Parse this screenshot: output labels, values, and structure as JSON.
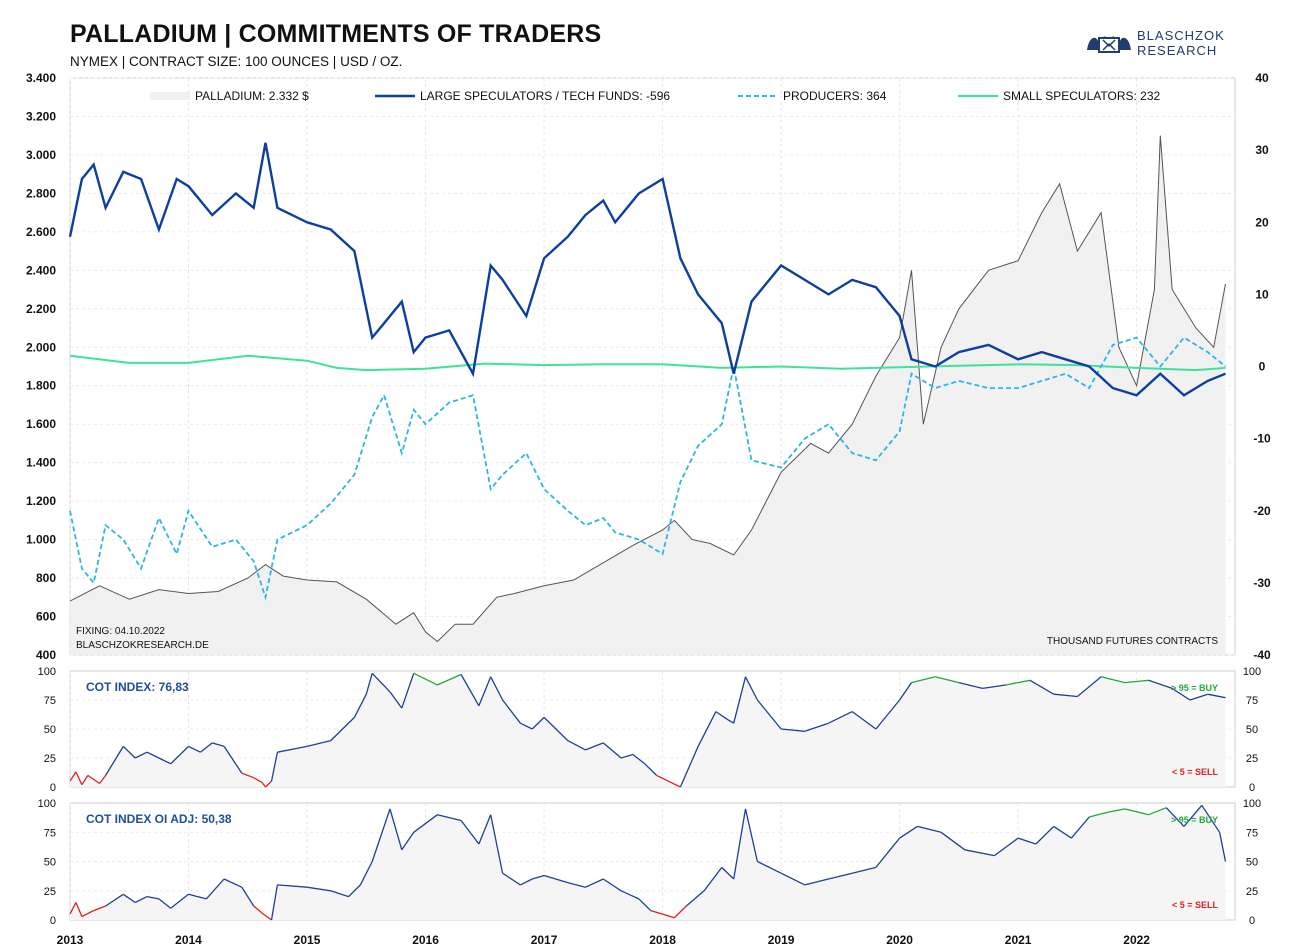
{
  "header": {
    "title": "PALLADIUM | COMMITMENTS OF TRADERS",
    "subtitle": "NYMEX | CONTRACT SIZE: 100 OUNCES | USD / OZ.",
    "logo_line1": "BLASCHZOK",
    "logo_line2": "RESEARCH"
  },
  "colors": {
    "price": "#555555",
    "large_speculators": "#0d3fa0",
    "producers": "#29b6e8",
    "small_speculators": "#3ee39a",
    "buy": "#1eaa3a",
    "sell": "#e02020",
    "index_line": "#1f3f9a"
  },
  "chart_data": [
    {
      "type": "line",
      "x_ticks": [
        "2013",
        "2014",
        "2015",
        "2016",
        "2017",
        "2018",
        "2019",
        "2020",
        "2021",
        "2022"
      ],
      "y_left_ticks": [
        "3.400",
        "3.200",
        "3.000",
        "2.800",
        "2.600",
        "2.400",
        "2.200",
        "2.000",
        "1.800",
        "1.600",
        "1.400",
        "1.200",
        "1.000",
        "800",
        "600",
        "400"
      ],
      "y_right_ticks": [
        "40",
        "30",
        "20",
        "10",
        "0",
        "-10",
        "-20",
        "-30",
        "-40"
      ],
      "ylim_left": [
        400,
        3400
      ],
      "ylim_right": [
        -40,
        40
      ],
      "legend": [
        {
          "key": "price",
          "label": "PALLADIUM: 2.332 $"
        },
        {
          "key": "large",
          "label": "LARGE SPECULATORS / TECH FUNDS: -596"
        },
        {
          "key": "producers",
          "label": "PRODUCERS: 364"
        },
        {
          "key": "small",
          "label": "SMALL SPECULATORS: 232"
        }
      ],
      "annotation_fixing": "FIXING: 04.10.2022",
      "annotation_site": "BLASCHZOKRESEARCH.DE",
      "annotation_units": "THOUSAND  FUTURES  CONTRACTS",
      "series": [
        {
          "name": "PALLADIUM",
          "axis": "left",
          "x": [
            2013.0,
            2013.25,
            2013.5,
            2013.75,
            2014.0,
            2014.25,
            2014.5,
            2014.65,
            2014.8,
            2015.0,
            2015.25,
            2015.5,
            2015.75,
            2015.9,
            2016.0,
            2016.1,
            2016.25,
            2016.4,
            2016.6,
            2016.75,
            2017.0,
            2017.25,
            2017.5,
            2017.75,
            2018.0,
            2018.1,
            2018.25,
            2018.4,
            2018.6,
            2018.75,
            2019.0,
            2019.25,
            2019.4,
            2019.6,
            2019.8,
            2020.0,
            2020.1,
            2020.2,
            2020.35,
            2020.5,
            2020.75,
            2021.0,
            2021.2,
            2021.35,
            2021.5,
            2021.7,
            2021.85,
            2022.0,
            2022.15,
            2022.2,
            2022.3,
            2022.5,
            2022.65,
            2022.75
          ],
          "y": [
            680,
            760,
            690,
            740,
            720,
            730,
            800,
            870,
            810,
            790,
            780,
            690,
            560,
            620,
            520,
            470,
            560,
            560,
            700,
            720,
            760,
            790,
            880,
            970,
            1050,
            1100,
            1000,
            980,
            920,
            1050,
            1350,
            1500,
            1450,
            1600,
            1850,
            2050,
            2400,
            1600,
            2000,
            2200,
            2400,
            2450,
            2700,
            2850,
            2500,
            2700,
            2000,
            1800,
            2300,
            3100,
            2300,
            2100,
            2000,
            2330
          ]
        },
        {
          "name": "LARGE SPECULATORS / TECH FUNDS",
          "axis": "right",
          "x": [
            2013.0,
            2013.1,
            2013.2,
            2013.3,
            2013.45,
            2013.6,
            2013.75,
            2013.9,
            2014.0,
            2014.2,
            2014.4,
            2014.55,
            2014.65,
            2014.75,
            2015.0,
            2015.2,
            2015.4,
            2015.55,
            2015.65,
            2015.8,
            2015.9,
            2016.0,
            2016.2,
            2016.4,
            2016.55,
            2016.65,
            2016.85,
            2017.0,
            2017.2,
            2017.35,
            2017.5,
            2017.6,
            2017.8,
            2018.0,
            2018.15,
            2018.3,
            2018.5,
            2018.6,
            2018.75,
            2019.0,
            2019.2,
            2019.4,
            2019.6,
            2019.8,
            2020.0,
            2020.1,
            2020.3,
            2020.5,
            2020.75,
            2021.0,
            2021.2,
            2021.4,
            2021.6,
            2021.8,
            2022.0,
            2022.2,
            2022.4,
            2022.6,
            2022.75
          ],
          "y": [
            18,
            26,
            28,
            22,
            27,
            26,
            19,
            26,
            25,
            21,
            24,
            22,
            31,
            22,
            20,
            19,
            16,
            4,
            6,
            9,
            2,
            4,
            5,
            -1,
            14,
            12,
            7,
            15,
            18,
            21,
            23,
            20,
            24,
            26,
            15,
            10,
            6,
            -1,
            9,
            14,
            12,
            10,
            12,
            11,
            7,
            1,
            0,
            2,
            3,
            1,
            2,
            1,
            0,
            -3,
            -4,
            -1,
            -4,
            -2,
            -1
          ]
        },
        {
          "name": "PRODUCERS",
          "axis": "right",
          "x": [
            2013.0,
            2013.1,
            2013.2,
            2013.3,
            2013.45,
            2013.6,
            2013.75,
            2013.9,
            2014.0,
            2014.2,
            2014.4,
            2014.55,
            2014.65,
            2014.75,
            2015.0,
            2015.2,
            2015.4,
            2015.55,
            2015.65,
            2015.8,
            2015.9,
            2016.0,
            2016.2,
            2016.4,
            2016.55,
            2016.65,
            2016.85,
            2017.0,
            2017.2,
            2017.35,
            2017.5,
            2017.6,
            2017.8,
            2018.0,
            2018.15,
            2018.3,
            2018.5,
            2018.6,
            2018.75,
            2019.0,
            2019.2,
            2019.4,
            2019.6,
            2019.8,
            2020.0,
            2020.1,
            2020.3,
            2020.5,
            2020.75,
            2021.0,
            2021.2,
            2021.4,
            2021.6,
            2021.8,
            2022.0,
            2022.2,
            2022.4,
            2022.6,
            2022.75
          ],
          "y": [
            -20,
            -28,
            -30,
            -22,
            -24,
            -28,
            -21,
            -26,
            -20,
            -25,
            -24,
            -27,
            -32,
            -24,
            -22,
            -19,
            -15,
            -7,
            -4,
            -12,
            -6,
            -8,
            -5,
            -4,
            -17,
            -15,
            -12,
            -17,
            -20,
            -22,
            -21,
            -23,
            -24,
            -26,
            -16,
            -11,
            -8,
            0,
            -13,
            -14,
            -10,
            -8,
            -12,
            -13,
            -9,
            -1,
            -3,
            -2,
            -3,
            -3,
            -2,
            -1,
            -3,
            3,
            4,
            0,
            4,
            2,
            0
          ]
        },
        {
          "name": "SMALL SPECULATORS",
          "axis": "right",
          "x": [
            2013.0,
            2013.5,
            2014.0,
            2014.5,
            2015.0,
            2015.25,
            2015.5,
            2016.0,
            2016.5,
            2017.0,
            2017.5,
            2018.0,
            2018.5,
            2019.0,
            2019.5,
            2020.0,
            2020.5,
            2021.0,
            2021.5,
            2022.0,
            2022.5,
            2022.75
          ],
          "y": [
            1.5,
            0.5,
            0.5,
            1.5,
            0.8,
            -0.2,
            -0.5,
            -0.3,
            0.4,
            0.2,
            0.3,
            0.3,
            -0.2,
            0,
            -0.3,
            -0.1,
            0.1,
            0.3,
            0.2,
            -0.2,
            -0.5,
            -0.2
          ]
        }
      ]
    },
    {
      "type": "line",
      "label": "COT INDEX: 76,83",
      "buy_label": "> 95 = BUY",
      "sell_label": "< 5 = SELL",
      "y_ticks": [
        "100",
        "75",
        "50",
        "25",
        "0"
      ],
      "ylim": [
        0,
        100
      ],
      "x": [
        2013.0,
        2013.05,
        2013.1,
        2013.15,
        2013.25,
        2013.3,
        2013.45,
        2013.55,
        2013.65,
        2013.75,
        2013.85,
        2014.0,
        2014.1,
        2014.2,
        2014.3,
        2014.45,
        2014.55,
        2014.62,
        2014.65,
        2014.7,
        2014.75,
        2015.0,
        2015.2,
        2015.4,
        2015.5,
        2015.55,
        2015.7,
        2015.8,
        2015.9,
        2016.1,
        2016.3,
        2016.45,
        2016.55,
        2016.65,
        2016.8,
        2016.9,
        2017.0,
        2017.2,
        2017.35,
        2017.5,
        2017.65,
        2017.75,
        2017.85,
        2017.95,
        2018.05,
        2018.15,
        2018.3,
        2018.45,
        2018.55,
        2018.6,
        2018.7,
        2018.8,
        2019.0,
        2019.2,
        2019.4,
        2019.6,
        2019.8,
        2020.0,
        2020.1,
        2020.3,
        2020.5,
        2020.7,
        2020.9,
        2021.1,
        2021.3,
        2021.5,
        2021.7,
        2021.9,
        2022.1,
        2022.3,
        2022.45,
        2022.6,
        2022.75
      ],
      "y": [
        5,
        13,
        2,
        10,
        3,
        10,
        35,
        25,
        30,
        25,
        20,
        35,
        30,
        38,
        35,
        12,
        8,
        4,
        0,
        5,
        30,
        35,
        40,
        60,
        80,
        98,
        82,
        68,
        98,
        88,
        97,
        70,
        95,
        75,
        55,
        50,
        60,
        40,
        32,
        38,
        25,
        28,
        20,
        10,
        5,
        0,
        35,
        65,
        58,
        55,
        95,
        75,
        50,
        48,
        55,
        65,
        50,
        75,
        90,
        95,
        90,
        85,
        88,
        92,
        80,
        78,
        95,
        90,
        92,
        85,
        75,
        80,
        77
      ]
    },
    {
      "type": "line",
      "label": "COT INDEX OI ADJ: 50,38",
      "buy_label": "> 95 = BUY",
      "sell_label": "< 5 = SELL",
      "y_ticks": [
        "100",
        "75",
        "50",
        "25",
        "0"
      ],
      "ylim": [
        0,
        100
      ],
      "x": [
        2013.0,
        2013.05,
        2013.1,
        2013.2,
        2013.3,
        2013.45,
        2013.55,
        2013.65,
        2013.75,
        2013.85,
        2014.0,
        2014.15,
        2014.3,
        2014.45,
        2014.55,
        2014.62,
        2014.7,
        2014.75,
        2015.0,
        2015.2,
        2015.35,
        2015.45,
        2015.55,
        2015.7,
        2015.8,
        2015.9,
        2016.1,
        2016.3,
        2016.45,
        2016.55,
        2016.65,
        2016.8,
        2016.9,
        2017.0,
        2017.2,
        2017.35,
        2017.5,
        2017.65,
        2017.8,
        2017.9,
        2018.0,
        2018.1,
        2018.2,
        2018.35,
        2018.5,
        2018.6,
        2018.7,
        2018.8,
        2019.0,
        2019.2,
        2019.4,
        2019.6,
        2019.8,
        2020.0,
        2020.15,
        2020.35,
        2020.55,
        2020.8,
        2021.0,
        2021.15,
        2021.3,
        2021.45,
        2021.6,
        2021.75,
        2021.9,
        2022.1,
        2022.25,
        2022.4,
        2022.55,
        2022.7,
        2022.75
      ],
      "y": [
        5,
        15,
        3,
        8,
        12,
        22,
        15,
        20,
        18,
        10,
        22,
        18,
        35,
        28,
        12,
        6,
        0,
        30,
        28,
        25,
        20,
        30,
        50,
        95,
        60,
        75,
        90,
        85,
        65,
        90,
        40,
        30,
        35,
        38,
        32,
        28,
        35,
        25,
        18,
        8,
        5,
        2,
        12,
        25,
        45,
        35,
        95,
        50,
        40,
        30,
        35,
        40,
        45,
        70,
        80,
        75,
        60,
        55,
        70,
        65,
        80,
        70,
        88,
        92,
        95,
        90,
        96,
        80,
        98,
        75,
        50
      ]
    }
  ]
}
